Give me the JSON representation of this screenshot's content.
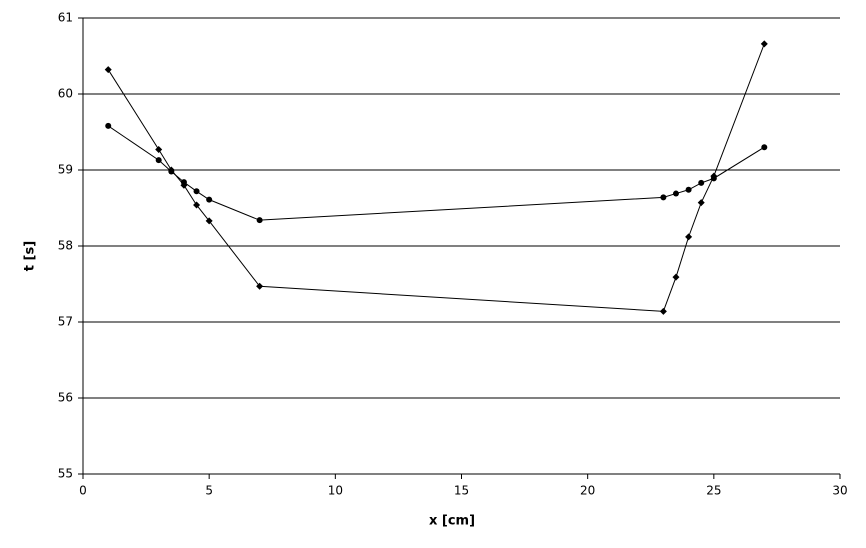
{
  "chart_data": {
    "type": "line",
    "x_label": "x [cm]",
    "y_label": "t [s]",
    "xlim": [
      0,
      30
    ],
    "xticks": [
      0,
      5,
      10,
      15,
      20,
      25,
      30
    ],
    "ylim": [
      55,
      61
    ],
    "yticks": [
      55,
      56,
      57,
      58,
      59,
      60,
      61
    ],
    "grid": true,
    "series": [
      {
        "marker": "diamond",
        "color": "#000000",
        "x": [
          1,
          3,
          3.5,
          4,
          4.5,
          5,
          7,
          23,
          23.5,
          24,
          24.5,
          25,
          27
        ],
        "values": [
          60.32,
          59.27,
          59.0,
          58.8,
          58.54,
          58.33,
          57.47,
          57.14,
          57.59,
          58.12,
          58.57,
          58.92,
          60.66
        ]
      },
      {
        "marker": "circle",
        "color": "#000000",
        "x": [
          1,
          3,
          3.5,
          4,
          4.5,
          5,
          7,
          23,
          23.5,
          24,
          24.5,
          25,
          27
        ],
        "values": [
          59.58,
          59.13,
          58.98,
          58.84,
          58.72,
          58.61,
          58.34,
          58.64,
          58.69,
          58.74,
          58.83,
          58.89,
          59.3
        ]
      }
    ]
  }
}
